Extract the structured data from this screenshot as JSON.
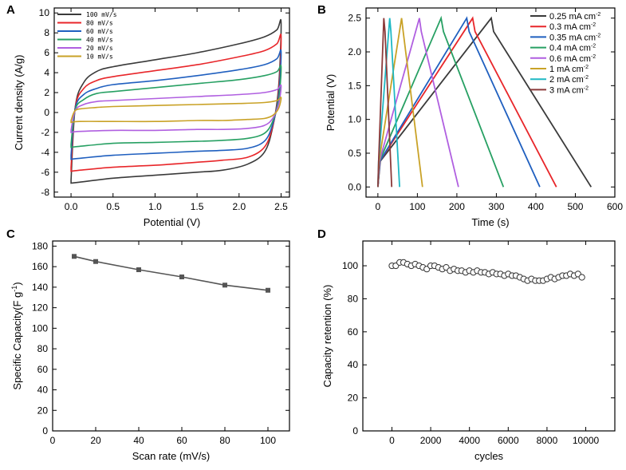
{
  "figure": {
    "panels": [
      "A",
      "B",
      "C",
      "D"
    ]
  },
  "chart_data": [
    {
      "id": "A",
      "type": "line",
      "title": "",
      "xlabel": "Potential (V)",
      "ylabel": "Current density (A/g)",
      "xlim": [
        -0.2,
        2.6
      ],
      "ylim": [
        -8.5,
        10.5
      ],
      "xticks": [
        0.0,
        0.5,
        1.0,
        1.5,
        2.0,
        2.5
      ],
      "xtick_labels": [
        "0.0",
        "0.5",
        "1.0",
        "1.5",
        "2.0",
        "2.5"
      ],
      "yticks": [
        -8,
        -6,
        -4,
        -2,
        0,
        2,
        4,
        6,
        8,
        10
      ],
      "ytick_labels": [
        "-8",
        "-6",
        "-4",
        "-2",
        "0",
        "2",
        "4",
        "6",
        "8",
        "10"
      ],
      "legend_position": "top-left",
      "series": [
        {
          "name": "100 mV/s",
          "color": "#3a3a3a",
          "upper": [
            [
              0.0,
              -6.8
            ],
            [
              0.05,
              0.5
            ],
            [
              0.15,
              3.0
            ],
            [
              0.3,
              4.1
            ],
            [
              0.5,
              4.6
            ],
            [
              1.0,
              5.3
            ],
            [
              1.5,
              6.0
            ],
            [
              2.0,
              6.9
            ],
            [
              2.3,
              7.6
            ],
            [
              2.45,
              8.3
            ],
            [
              2.5,
              9.0
            ]
          ],
          "lower": [
            [
              2.5,
              9.0
            ],
            [
              2.47,
              2.5
            ],
            [
              2.4,
              -1.5
            ],
            [
              2.3,
              -4.0
            ],
            [
              2.1,
              -5.2
            ],
            [
              1.8,
              -5.8
            ],
            [
              1.5,
              -6.0
            ],
            [
              1.0,
              -6.3
            ],
            [
              0.5,
              -6.6
            ],
            [
              0.1,
              -7.0
            ],
            [
              0.0,
              -7.1
            ]
          ]
        },
        {
          "name": "80 mV/s",
          "color": "#e8262a",
          "upper": [
            [
              0.0,
              -5.5
            ],
            [
              0.05,
              0.5
            ],
            [
              0.15,
              2.4
            ],
            [
              0.3,
              3.2
            ],
            [
              0.5,
              3.6
            ],
            [
              1.0,
              4.2
            ],
            [
              1.5,
              4.8
            ],
            [
              2.0,
              5.6
            ],
            [
              2.3,
              6.2
            ],
            [
              2.45,
              6.9
            ],
            [
              2.5,
              7.6
            ]
          ],
          "lower": [
            [
              2.5,
              7.6
            ],
            [
              2.47,
              2.0
            ],
            [
              2.4,
              -1.4
            ],
            [
              2.3,
              -3.5
            ],
            [
              2.1,
              -4.5
            ],
            [
              1.8,
              -4.8
            ],
            [
              1.5,
              -5.0
            ],
            [
              1.0,
              -5.3
            ],
            [
              0.5,
              -5.5
            ],
            [
              0.1,
              -5.8
            ],
            [
              0.0,
              -5.9
            ]
          ]
        },
        {
          "name": "60 mV/s",
          "color": "#1f5fbf",
          "upper": [
            [
              0.0,
              -4.3
            ],
            [
              0.05,
              0.4
            ],
            [
              0.15,
              1.8
            ],
            [
              0.3,
              2.4
            ],
            [
              0.5,
              2.8
            ],
            [
              1.0,
              3.2
            ],
            [
              1.5,
              3.7
            ],
            [
              2.0,
              4.3
            ],
            [
              2.3,
              4.8
            ],
            [
              2.45,
              5.4
            ],
            [
              2.5,
              6.1
            ]
          ],
          "lower": [
            [
              2.5,
              6.1
            ],
            [
              2.47,
              1.6
            ],
            [
              2.4,
              -1.2
            ],
            [
              2.3,
              -2.9
            ],
            [
              2.1,
              -3.6
            ],
            [
              1.8,
              -3.8
            ],
            [
              1.5,
              -3.9
            ],
            [
              1.0,
              -4.1
            ],
            [
              0.5,
              -4.3
            ],
            [
              0.1,
              -4.6
            ],
            [
              0.0,
              -4.7
            ]
          ]
        },
        {
          "name": "40 mV/s",
          "color": "#27a063",
          "upper": [
            [
              0.0,
              -3.2
            ],
            [
              0.05,
              0.3
            ],
            [
              0.15,
              1.3
            ],
            [
              0.3,
              1.9
            ],
            [
              0.5,
              2.1
            ],
            [
              1.0,
              2.5
            ],
            [
              1.5,
              2.9
            ],
            [
              2.0,
              3.3
            ],
            [
              2.3,
              3.7
            ],
            [
              2.45,
              4.1
            ],
            [
              2.5,
              4.6
            ]
          ],
          "lower": [
            [
              2.5,
              4.6
            ],
            [
              2.47,
              1.2
            ],
            [
              2.4,
              -0.9
            ],
            [
              2.3,
              -2.1
            ],
            [
              2.1,
              -2.6
            ],
            [
              1.8,
              -2.8
            ],
            [
              1.5,
              -2.9
            ],
            [
              1.0,
              -3.0
            ],
            [
              0.5,
              -3.1
            ],
            [
              0.1,
              -3.4
            ],
            [
              0.0,
              -3.5
            ]
          ]
        },
        {
          "name": "20 mV/s",
          "color": "#b05fe0",
          "upper": [
            [
              0.0,
              -1.8
            ],
            [
              0.05,
              0.2
            ],
            [
              0.15,
              0.8
            ],
            [
              0.3,
              1.1
            ],
            [
              0.5,
              1.2
            ],
            [
              1.0,
              1.4
            ],
            [
              1.5,
              1.6
            ],
            [
              2.0,
              1.8
            ],
            [
              2.3,
              2.0
            ],
            [
              2.45,
              2.3
            ],
            [
              2.5,
              2.7
            ]
          ],
          "lower": [
            [
              2.5,
              2.7
            ],
            [
              2.47,
              0.8
            ],
            [
              2.4,
              -0.6
            ],
            [
              2.3,
              -1.3
            ],
            [
              2.1,
              -1.6
            ],
            [
              1.8,
              -1.7
            ],
            [
              1.5,
              -1.7
            ],
            [
              1.0,
              -1.8
            ],
            [
              0.5,
              -1.8
            ],
            [
              0.1,
              -1.9
            ],
            [
              0.0,
              -2.0
            ]
          ]
        },
        {
          "name": "10 mV/s",
          "color": "#c9a227",
          "upper": [
            [
              0.0,
              -0.8
            ],
            [
              0.05,
              0.2
            ],
            [
              0.15,
              0.4
            ],
            [
              0.3,
              0.5
            ],
            [
              0.5,
              0.6
            ],
            [
              1.0,
              0.7
            ],
            [
              1.5,
              0.8
            ],
            [
              2.0,
              0.9
            ],
            [
              2.3,
              1.0
            ],
            [
              2.45,
              1.2
            ],
            [
              2.5,
              1.5
            ]
          ],
          "lower": [
            [
              2.5,
              1.5
            ],
            [
              2.47,
              0.4
            ],
            [
              2.4,
              -0.3
            ],
            [
              2.3,
              -0.6
            ],
            [
              2.1,
              -0.7
            ],
            [
              1.8,
              -0.8
            ],
            [
              1.5,
              -0.8
            ],
            [
              1.0,
              -0.9
            ],
            [
              0.5,
              -0.9
            ],
            [
              0.1,
              -0.9
            ],
            [
              0.0,
              -1.0
            ]
          ]
        }
      ]
    },
    {
      "id": "B",
      "type": "line",
      "title": "",
      "xlabel": "Time (s)",
      "ylabel": "Potential (V)",
      "xlim": [
        -30,
        600
      ],
      "ylim": [
        -0.15,
        2.65
      ],
      "xticks": [
        0,
        100,
        200,
        300,
        400,
        500,
        600
      ],
      "xtick_labels": [
        "0",
        "100",
        "200",
        "300",
        "400",
        "500",
        "600"
      ],
      "yticks": [
        0.0,
        0.5,
        1.0,
        1.5,
        2.0,
        2.5
      ],
      "ytick_labels": [
        "0.0",
        "0.5",
        "1.0",
        "1.5",
        "2.0",
        "2.5"
      ],
      "legend_position": "top-right",
      "series": [
        {
          "name": "0.25 mA cm",
          "sup": "-2",
          "color": "#3a3a3a",
          "points": [
            [
              0,
              0
            ],
            [
              6,
              0.38
            ],
            [
              287,
              2.5
            ],
            [
              293,
              2.3
            ],
            [
              540,
              0
            ]
          ]
        },
        {
          "name": "0.3 mA cm",
          "sup": "-2",
          "color": "#e8262a",
          "points": [
            [
              0,
              0
            ],
            [
              5,
              0.38
            ],
            [
              240,
              2.5
            ],
            [
              246,
              2.3
            ],
            [
              452,
              0
            ]
          ]
        },
        {
          "name": "0.35 mA cm",
          "sup": "-2",
          "color": "#1f5fbf",
          "points": [
            [
              0,
              0
            ],
            [
              5,
              0.38
            ],
            [
              225,
              2.5
            ],
            [
              231,
              2.3
            ],
            [
              410,
              0
            ]
          ]
        },
        {
          "name": "0.4 mA cm",
          "sup": "-2",
          "color": "#27a063",
          "points": [
            [
              0,
              0
            ],
            [
              4,
              0.38
            ],
            [
              160,
              2.5
            ],
            [
              166,
              2.3
            ],
            [
              318,
              0
            ]
          ]
        },
        {
          "name": "0.6 mA cm",
          "sup": "-2",
          "color": "#b05fe0",
          "points": [
            [
              0,
              0
            ],
            [
              4,
              0.38
            ],
            [
              105,
              2.5
            ],
            [
              110,
              2.3
            ],
            [
              204,
              0
            ]
          ]
        },
        {
          "name": "1 mA cm",
          "sup": "-2",
          "color": "#c9a227",
          "points": [
            [
              0,
              0
            ],
            [
              3,
              0.38
            ],
            [
              60,
              2.5
            ],
            [
              64,
              2.3
            ],
            [
              113,
              0
            ]
          ]
        },
        {
          "name": "2 mA cm",
          "sup": "-2",
          "color": "#1fb8c4",
          "points": [
            [
              0,
              0
            ],
            [
              2,
              0.38
            ],
            [
              30,
              2.5
            ],
            [
              33,
              2.3
            ],
            [
              55,
              0
            ]
          ]
        },
        {
          "name": "3 mA cm",
          "sup": "-2",
          "color": "#8b3a3a",
          "points": [
            [
              0,
              0
            ],
            [
              2,
              0.38
            ],
            [
              15,
              2.5
            ],
            [
              18,
              2.3
            ],
            [
              35,
              0
            ]
          ]
        }
      ]
    },
    {
      "id": "C",
      "type": "line",
      "title": "",
      "xlabel": "Scan rate (mV/s)",
      "ylabel": "Specific Capacity(F g",
      "ylabel_sup": "-1",
      "ylabel_end": ")",
      "xlim": [
        0,
        110
      ],
      "ylim": [
        0,
        185
      ],
      "xticks": [
        0,
        20,
        40,
        60,
        80,
        100
      ],
      "xtick_labels": [
        "0",
        "20",
        "40",
        "60",
        "80",
        "100"
      ],
      "yticks": [
        0,
        20,
        40,
        60,
        80,
        100,
        120,
        140,
        160,
        180
      ],
      "ytick_labels": [
        "0",
        "20",
        "40",
        "60",
        "80",
        "100",
        "120",
        "140",
        "160",
        "180"
      ],
      "series": [
        {
          "name": "specific capacity",
          "color": "#555555",
          "x": [
            10,
            20,
            40,
            60,
            80,
            100
          ],
          "y": [
            170,
            165,
            157,
            150,
            142,
            137
          ]
        }
      ]
    },
    {
      "id": "D",
      "type": "scatter",
      "title": "",
      "xlabel": "cycles",
      "ylabel": "Capacity retention (%)",
      "xlim": [
        -1500,
        11500
      ],
      "ylim": [
        0,
        115
      ],
      "xticks": [
        0,
        2000,
        4000,
        6000,
        8000,
        10000
      ],
      "xtick_labels": [
        "0",
        "2000",
        "4000",
        "6000",
        "8000",
        "10000"
      ],
      "yticks": [
        0,
        20,
        40,
        60,
        80,
        100
      ],
      "ytick_labels": [
        "0",
        "20",
        "40",
        "60",
        "80",
        "100"
      ],
      "series": [
        {
          "name": "capacity retention",
          "color": "#555555",
          "x": [
            0,
            200,
            400,
            600,
            800,
            1000,
            1200,
            1400,
            1600,
            1800,
            2000,
            2200,
            2400,
            2600,
            2800,
            3000,
            3200,
            3400,
            3600,
            3800,
            4000,
            4200,
            4400,
            4600,
            4800,
            5000,
            5200,
            5400,
            5600,
            5800,
            6000,
            6200,
            6400,
            6600,
            6800,
            7000,
            7200,
            7400,
            7600,
            7800,
            8000,
            8200,
            8400,
            8600,
            8800,
            9000,
            9200,
            9400,
            9600,
            9800
          ],
          "y": [
            100,
            100,
            102,
            102,
            101,
            100,
            101,
            100,
            99,
            98,
            100,
            100,
            99,
            98,
            99,
            97,
            98,
            97,
            97,
            96,
            97,
            96,
            97,
            96,
            96,
            95,
            96,
            95,
            95,
            94,
            95,
            94,
            94,
            93,
            92,
            91,
            92,
            91,
            91,
            91,
            92,
            93,
            92,
            93,
            94,
            94,
            95,
            94,
            95,
            93
          ]
        }
      ]
    }
  ]
}
